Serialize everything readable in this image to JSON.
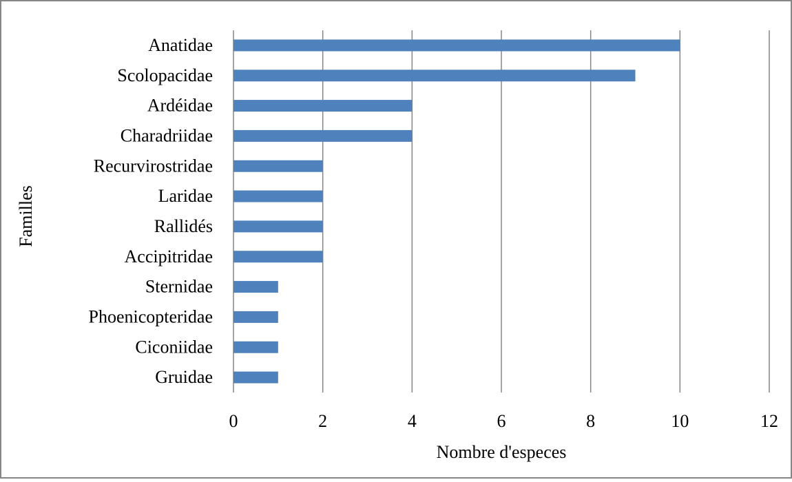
{
  "chart_data": {
    "type": "bar",
    "orientation": "horizontal",
    "categories": [
      "Anatidae",
      "Scolopacidae",
      "Ardéidae",
      "Charadriidae",
      "Recurvirostridae",
      "Laridae",
      "Rallidés",
      "Accipitridae",
      "Sternidae",
      "Phoenicopteridae",
      "Ciconiidae",
      "Gruidae"
    ],
    "values": [
      10,
      9,
      4,
      4,
      2,
      2,
      2,
      2,
      1,
      1,
      1,
      1
    ],
    "xlabel": "Nombre d'especes",
    "ylabel": "Familles",
    "xlim": [
      0,
      12
    ],
    "xticks": [
      "0",
      "2",
      "4",
      "6",
      "8",
      "10",
      "12"
    ],
    "grid": "vertical",
    "legend": "none",
    "colors": {
      "bar": "#4f81bd",
      "grid": "#868686",
      "frame": "#868686"
    }
  }
}
